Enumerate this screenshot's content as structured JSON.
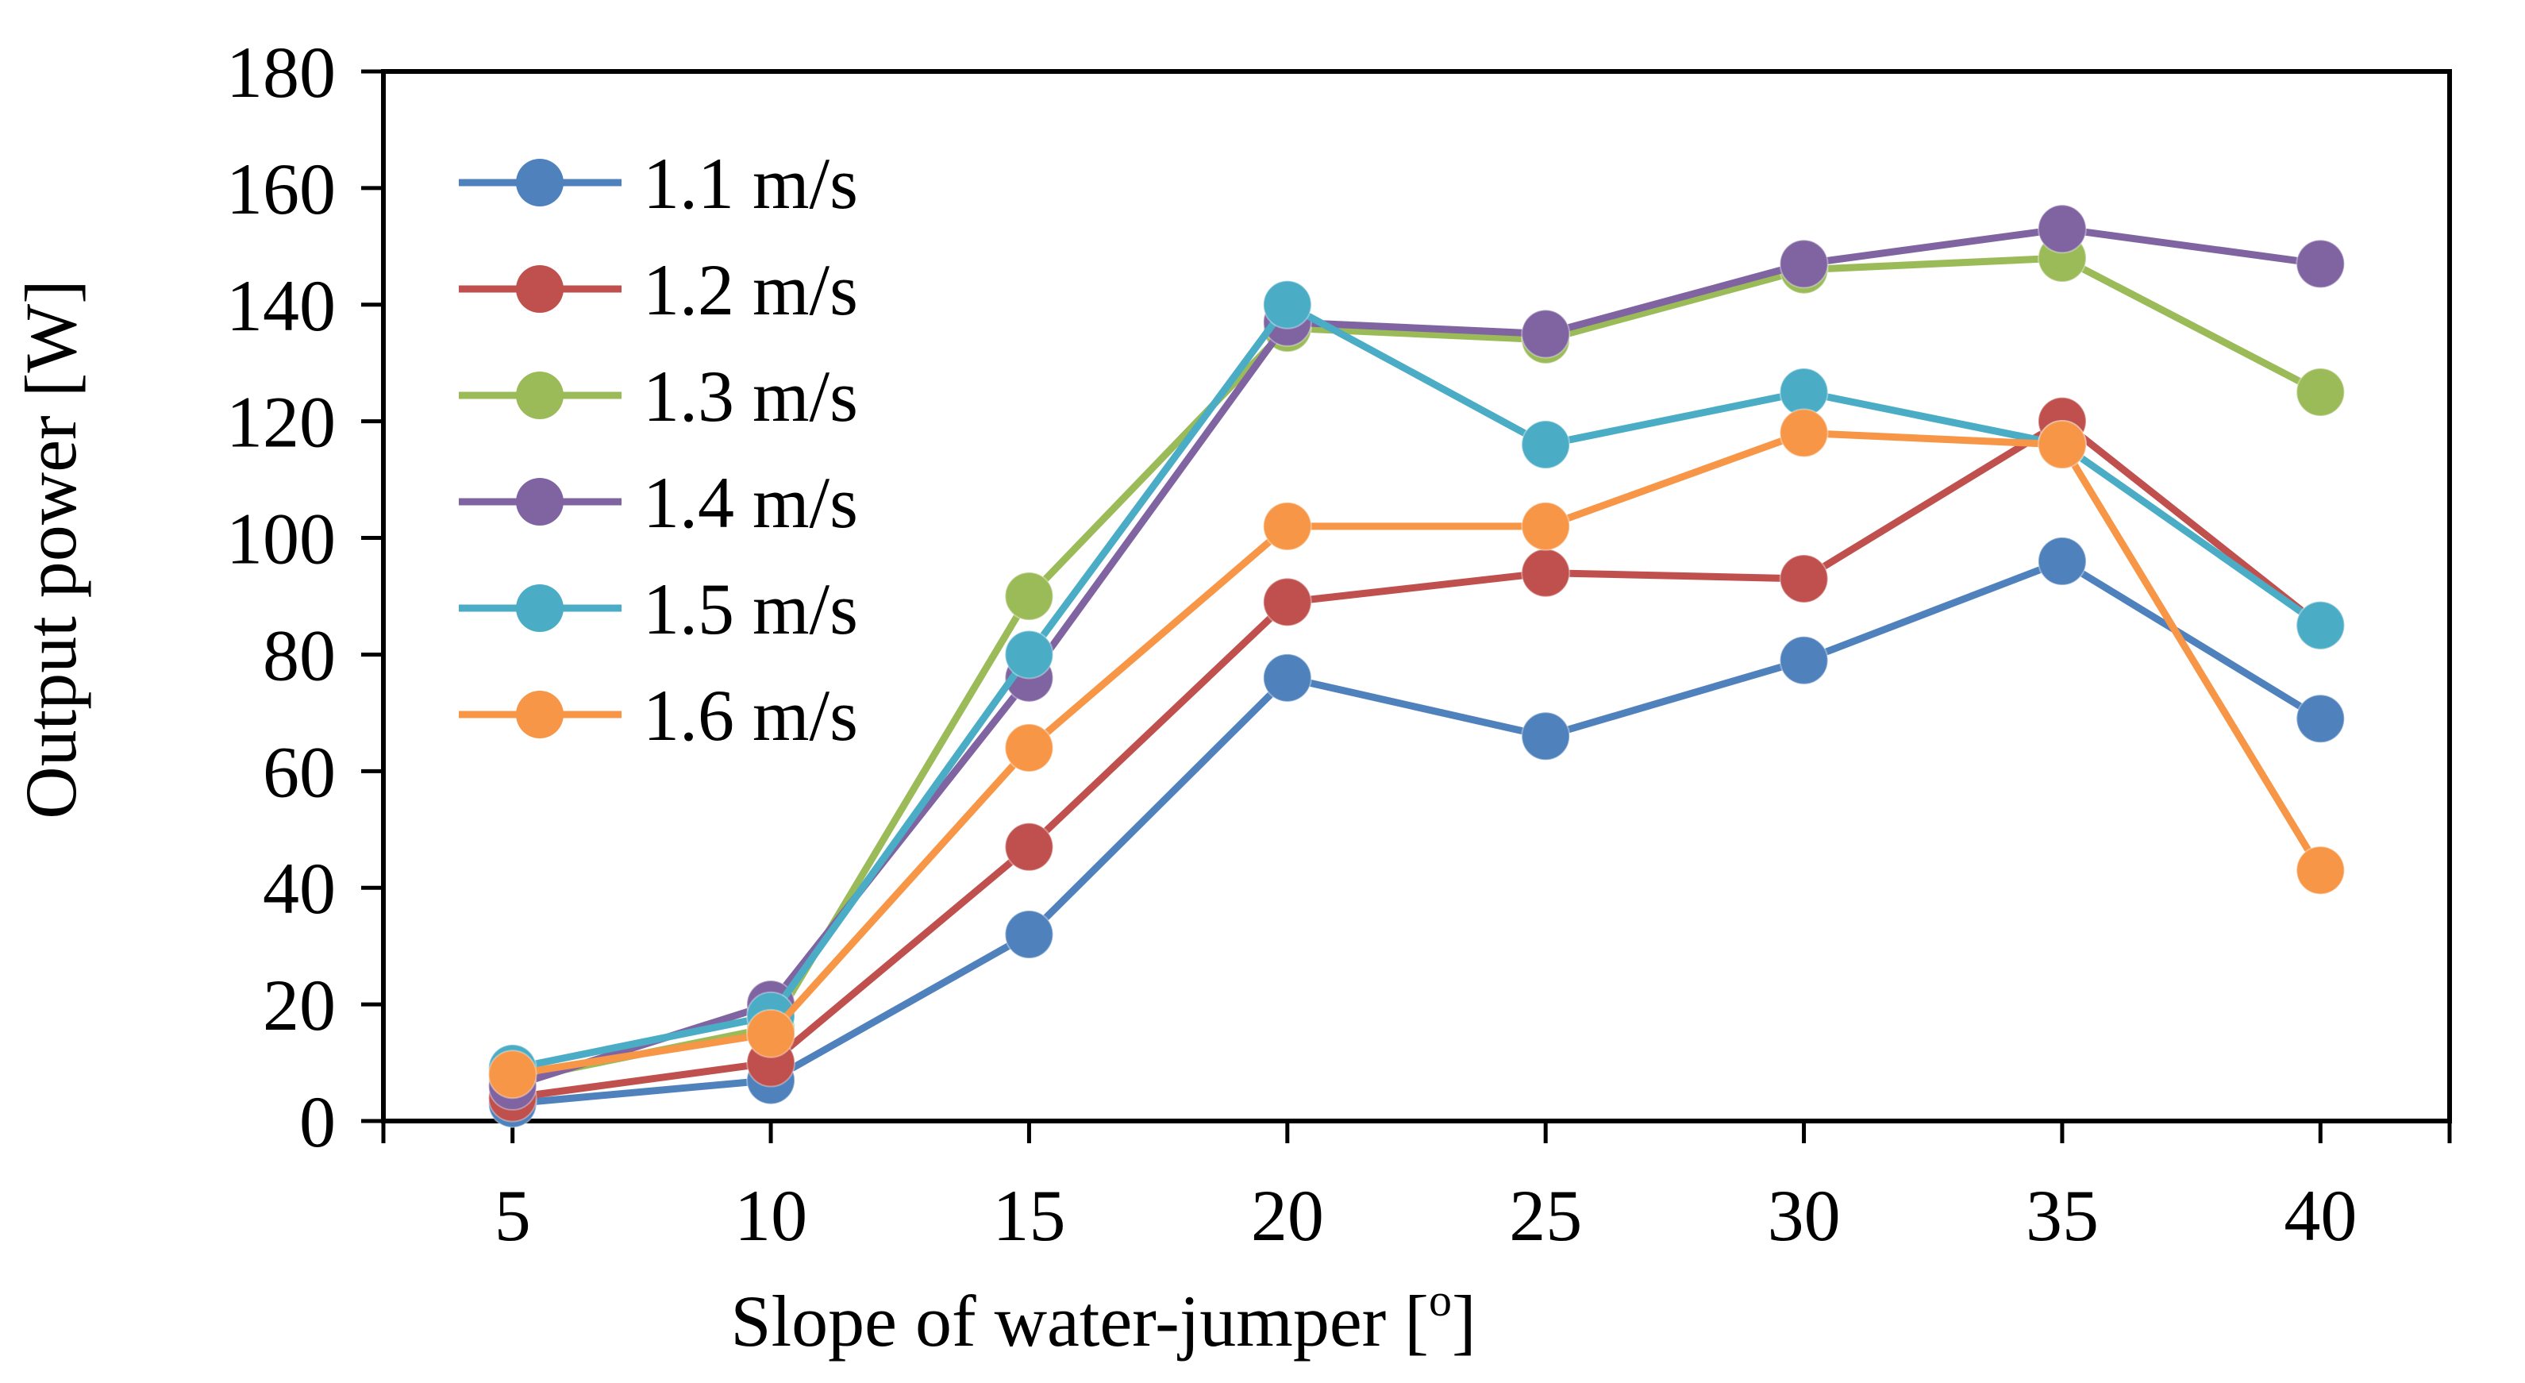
{
  "chart_data": {
    "type": "line",
    "xlabel": "Slope of water-jumper [",
    "xlabel_sup": "o",
    "xlabel_end": "]",
    "ylabel": "Output power [W]",
    "x": [
      5,
      10,
      15,
      20,
      25,
      30,
      35,
      40
    ],
    "xlim": [
      2.5,
      42.5
    ],
    "ylim": [
      0,
      180
    ],
    "yticks": [
      "0",
      "20",
      "40",
      "60",
      "80",
      "100",
      "120",
      "140",
      "160",
      "180"
    ],
    "xticks": [
      "5",
      "10",
      "15",
      "20",
      "25",
      "30",
      "35",
      "40"
    ],
    "grid": false,
    "legend_position": "top-left",
    "series": [
      {
        "name": "1.1 m/s",
        "color": "#4f81bd",
        "values": [
          3,
          7,
          32,
          76,
          66,
          79,
          96,
          69
        ]
      },
      {
        "name": "1.2 m/s",
        "color": "#c0504d",
        "values": [
          4,
          10,
          47,
          89,
          94,
          93,
          120,
          85
        ]
      },
      {
        "name": "1.3 m/s",
        "color": "#9bbb59",
        "values": [
          7,
          16,
          90,
          136,
          134,
          146,
          148,
          125
        ]
      },
      {
        "name": "1.4 m/s",
        "color": "#8064a2",
        "values": [
          6,
          20,
          76,
          137,
          135,
          147,
          153,
          147
        ]
      },
      {
        "name": "1.5 m/s",
        "color": "#4bacc6",
        "values": [
          9,
          18,
          80,
          140,
          116,
          125,
          116,
          85
        ]
      },
      {
        "name": "1.6 m/s",
        "color": "#f79646",
        "values": [
          8,
          15,
          64,
          102,
          102,
          118,
          116,
          43
        ]
      }
    ]
  }
}
